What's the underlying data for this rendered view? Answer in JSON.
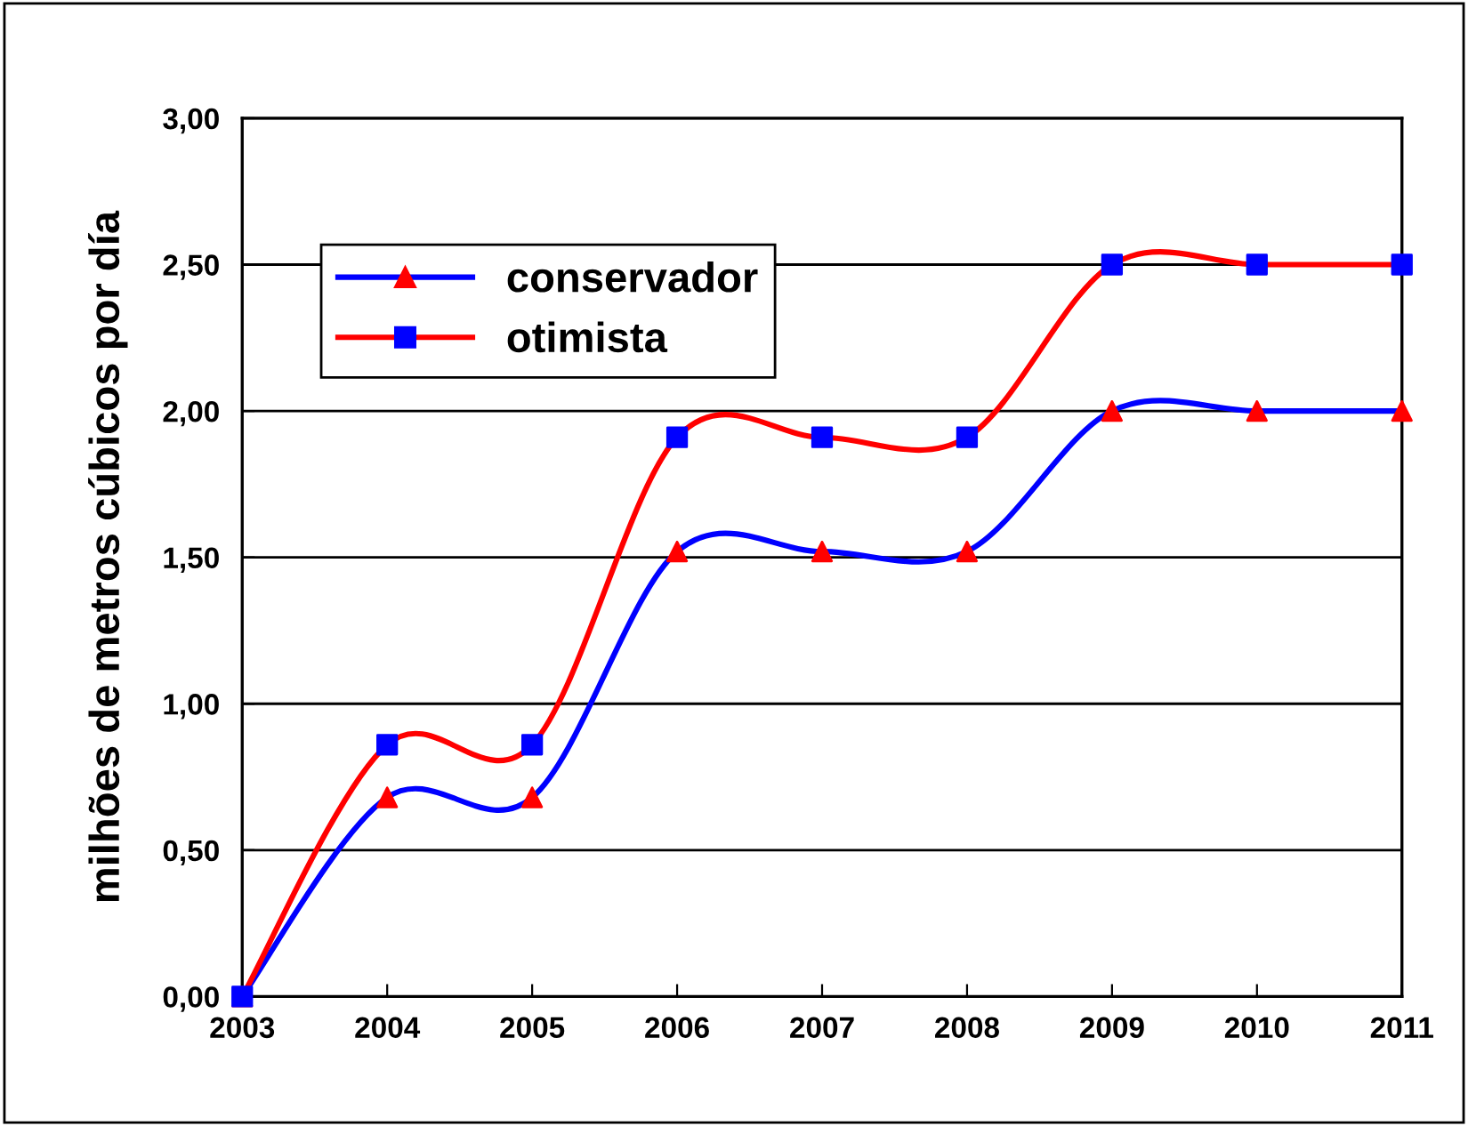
{
  "chart_data": {
    "type": "line",
    "ylabel": "milhões de metros cúbicos por día",
    "x": [
      2003,
      2004,
      2005,
      2006,
      2007,
      2008,
      2009,
      2010,
      2011
    ],
    "series": [
      {
        "name": "conservador",
        "color": "#0000ff",
        "marker": "triangle",
        "colors": [
          "#ff0000",
          "#ff0000",
          "#ff0000",
          "#ff0000",
          "#ff0000",
          "#ff0000",
          "#ff0000",
          "#ff0000",
          "#ff0000"
        ],
        "values": [
          0,
          0.68,
          0.68,
          1.52,
          1.52,
          1.52,
          2.0,
          2.0,
          2.0
        ]
      },
      {
        "name": "otimista",
        "color": "#ff0000",
        "marker": "square",
        "colors": [
          "#0000ff",
          "#0000ff",
          "#0000ff",
          "#0000ff",
          "#0000ff",
          "#0000ff",
          "#0000ff",
          "#0000ff",
          "#0000ff"
        ],
        "values": [
          0,
          0.86,
          0.86,
          1.91,
          1.91,
          1.91,
          2.5,
          2.5,
          2.5
        ]
      }
    ],
    "xlim": [
      2003,
      2011
    ],
    "xticks": [
      2003,
      2004,
      2005,
      2006,
      2007,
      2008,
      2009,
      2010,
      2011
    ],
    "ylim": [
      0,
      3
    ],
    "yticks": [
      {
        "value": 0,
        "label": "0,00"
      },
      {
        "value": 0.5,
        "label": "0,50"
      },
      {
        "value": 1,
        "label": "1,00"
      },
      {
        "value": 1.5,
        "label": "1,50"
      },
      {
        "value": 2,
        "label": "2,00"
      },
      {
        "value": 2.5,
        "label": "2,50"
      },
      {
        "value": 3,
        "label": "3,00"
      }
    ],
    "grid": "y",
    "legend": "top left"
  }
}
